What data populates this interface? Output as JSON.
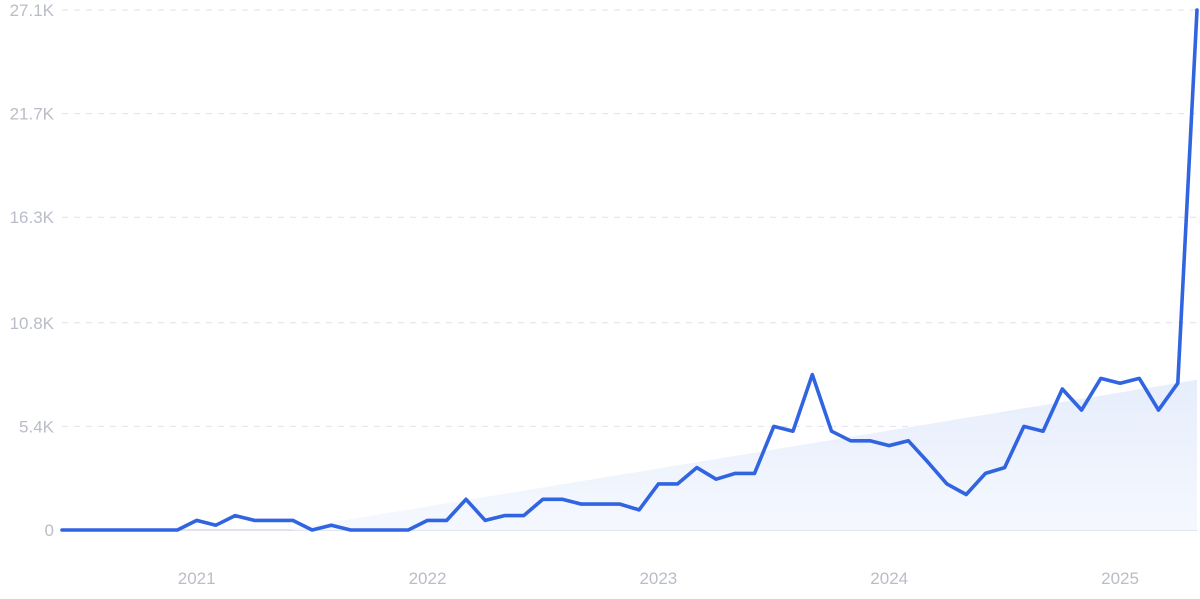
{
  "chart_data": {
    "type": "line",
    "title": "",
    "xlabel": "",
    "ylabel": "",
    "ylim": [
      0,
      27100
    ],
    "y_ticks": [
      {
        "value": 0,
        "label": "0"
      },
      {
        "value": 5400,
        "label": "5.4K"
      },
      {
        "value": 10800,
        "label": "10.8K"
      },
      {
        "value": 16300,
        "label": "16.3K"
      },
      {
        "value": 21700,
        "label": "21.7K"
      },
      {
        "value": 27100,
        "label": "27.1K"
      }
    ],
    "x_ticks": [
      {
        "date": "2021-01",
        "label": "2021"
      },
      {
        "date": "2022-01",
        "label": "2022"
      },
      {
        "date": "2023-01",
        "label": "2023"
      },
      {
        "date": "2024-01",
        "label": "2024"
      },
      {
        "date": "2025-01",
        "label": "2025"
      }
    ],
    "grid": true,
    "trend_area_color": "#eaf0fc",
    "series": [
      {
        "color": "#3164e0",
        "x": [
          "2020-06",
          "2020-07",
          "2020-08",
          "2020-09",
          "2020-10",
          "2020-11",
          "2020-12",
          "2021-01",
          "2021-02",
          "2021-03",
          "2021-04",
          "2021-05",
          "2021-06",
          "2021-07",
          "2021-08",
          "2021-09",
          "2021-10",
          "2021-11",
          "2021-12",
          "2022-01",
          "2022-02",
          "2022-03",
          "2022-04",
          "2022-05",
          "2022-06",
          "2022-07",
          "2022-08",
          "2022-09",
          "2022-10",
          "2022-11",
          "2022-12",
          "2023-01",
          "2023-02",
          "2023-03",
          "2023-04",
          "2023-05",
          "2023-06",
          "2023-07",
          "2023-08",
          "2023-09",
          "2023-10",
          "2023-11",
          "2023-12",
          "2024-01",
          "2024-02",
          "2024-03",
          "2024-04",
          "2024-05",
          "2024-06",
          "2024-07",
          "2024-08",
          "2024-09",
          "2024-10",
          "2024-11",
          "2024-12",
          "2025-01",
          "2025-02",
          "2025-03",
          "2025-04",
          "2025-05"
        ],
        "values": [
          0,
          0,
          0,
          0,
          0,
          0,
          0,
          500,
          250,
          750,
          500,
          500,
          500,
          0,
          250,
          0,
          0,
          0,
          0,
          500,
          500,
          1600,
          500,
          750,
          750,
          1600,
          1600,
          1350,
          1350,
          1350,
          1050,
          2400,
          2400,
          3250,
          2650,
          2950,
          2950,
          5400,
          5150,
          8100,
          5150,
          4650,
          4650,
          4400,
          4650,
          3550,
          2400,
          1850,
          2950,
          3250,
          5400,
          5150,
          7350,
          6250,
          7900,
          7650,
          7900,
          6250,
          7650,
          27100
        ]
      }
    ]
  }
}
